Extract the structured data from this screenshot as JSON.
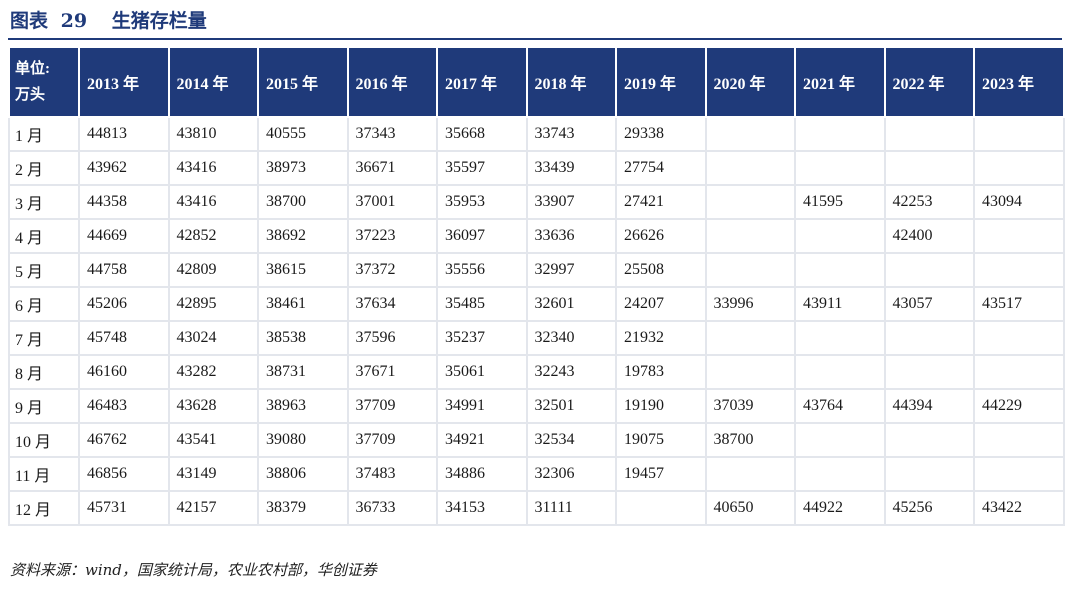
{
  "title": {
    "label": "图表",
    "number": "29",
    "text": "生猪存栏量"
  },
  "table": {
    "unit_header": [
      "单位:",
      "万头"
    ],
    "years": [
      "2013 年",
      "2014 年",
      "2015 年",
      "2016 年",
      "2017 年",
      "2018 年",
      "2019 年",
      "2020 年",
      "2021 年",
      "2022 年",
      "2023 年"
    ],
    "rows": [
      {
        "month": "1 月",
        "values": [
          "44813",
          "43810",
          "40555",
          "37343",
          "35668",
          "33743",
          "29338",
          "",
          "",
          "",
          ""
        ]
      },
      {
        "month": "2 月",
        "values": [
          "43962",
          "43416",
          "38973",
          "36671",
          "35597",
          "33439",
          "27754",
          "",
          "",
          "",
          ""
        ]
      },
      {
        "month": "3 月",
        "values": [
          "44358",
          "43416",
          "38700",
          "37001",
          "35953",
          "33907",
          "27421",
          "",
          "41595",
          "42253",
          "43094"
        ]
      },
      {
        "month": "4 月",
        "values": [
          "44669",
          "42852",
          "38692",
          "37223",
          "36097",
          "33636",
          "26626",
          "",
          "",
          "42400",
          ""
        ]
      },
      {
        "month": "5 月",
        "values": [
          "44758",
          "42809",
          "38615",
          "37372",
          "35556",
          "32997",
          "25508",
          "",
          "",
          "",
          ""
        ]
      },
      {
        "month": "6 月",
        "values": [
          "45206",
          "42895",
          "38461",
          "37634",
          "35485",
          "32601",
          "24207",
          "33996",
          "43911",
          "43057",
          "43517"
        ]
      },
      {
        "month": "7 月",
        "values": [
          "45748",
          "43024",
          "38538",
          "37596",
          "35237",
          "32340",
          "21932",
          "",
          "",
          "",
          ""
        ]
      },
      {
        "month": "8 月",
        "values": [
          "46160",
          "43282",
          "38731",
          "37671",
          "35061",
          "32243",
          "19783",
          "",
          "",
          "",
          ""
        ]
      },
      {
        "month": "9 月",
        "values": [
          "46483",
          "43628",
          "38963",
          "37709",
          "34991",
          "32501",
          "19190",
          "37039",
          "43764",
          "44394",
          "44229"
        ]
      },
      {
        "month": "10 月",
        "values": [
          "46762",
          "43541",
          "39080",
          "37709",
          "34921",
          "32534",
          "19075",
          "38700",
          "",
          "",
          ""
        ]
      },
      {
        "month": "11 月",
        "values": [
          "46856",
          "43149",
          "38806",
          "37483",
          "34886",
          "32306",
          "19457",
          "",
          "",
          "",
          ""
        ]
      },
      {
        "month": "12 月",
        "values": [
          "45731",
          "42157",
          "38379",
          "36733",
          "34153",
          "31111",
          "",
          "40650",
          "44922",
          "45256",
          "43422"
        ]
      }
    ]
  },
  "source": "资料来源：wind，国家统计局，农业农村部，华创证券"
}
